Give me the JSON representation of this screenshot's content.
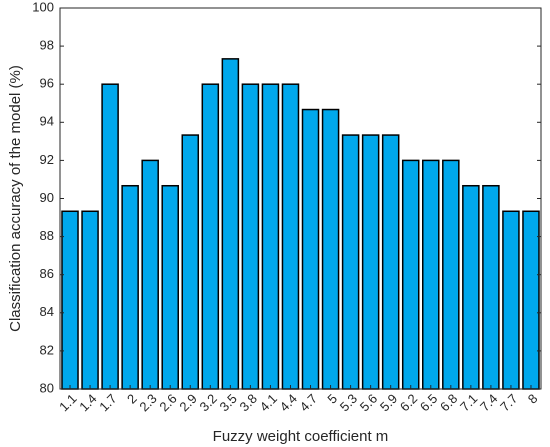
{
  "chart_data": {
    "type": "bar",
    "title": "",
    "xlabel": "Fuzzy weight coefficient m",
    "ylabel": "Classification accuracy of the model (%)",
    "categories": [
      "1.1",
      "1.4",
      "1.7",
      "2",
      "2.3",
      "2.6",
      "2.9",
      "3.2",
      "3.5",
      "3.8",
      "4.1",
      "4.4",
      "4.7",
      "5",
      "5.3",
      "5.6",
      "5.9",
      "6.2",
      "6.5",
      "6.8",
      "7.1",
      "7.4",
      "7.7",
      "8"
    ],
    "values": [
      89.33,
      89.33,
      96.0,
      90.67,
      92.0,
      90.67,
      93.33,
      96.0,
      97.33,
      96.0,
      96.0,
      96.0,
      94.67,
      94.67,
      93.33,
      93.33,
      93.33,
      92.0,
      92.0,
      92.0,
      90.67,
      90.67,
      89.33,
      89.33
    ],
    "ylim": [
      80,
      100
    ],
    "yticks": [
      80,
      82,
      84,
      86,
      88,
      90,
      92,
      94,
      96,
      98,
      100
    ],
    "grid": false,
    "bar_color": "#00a8ec",
    "edge_color": "#000000"
  }
}
